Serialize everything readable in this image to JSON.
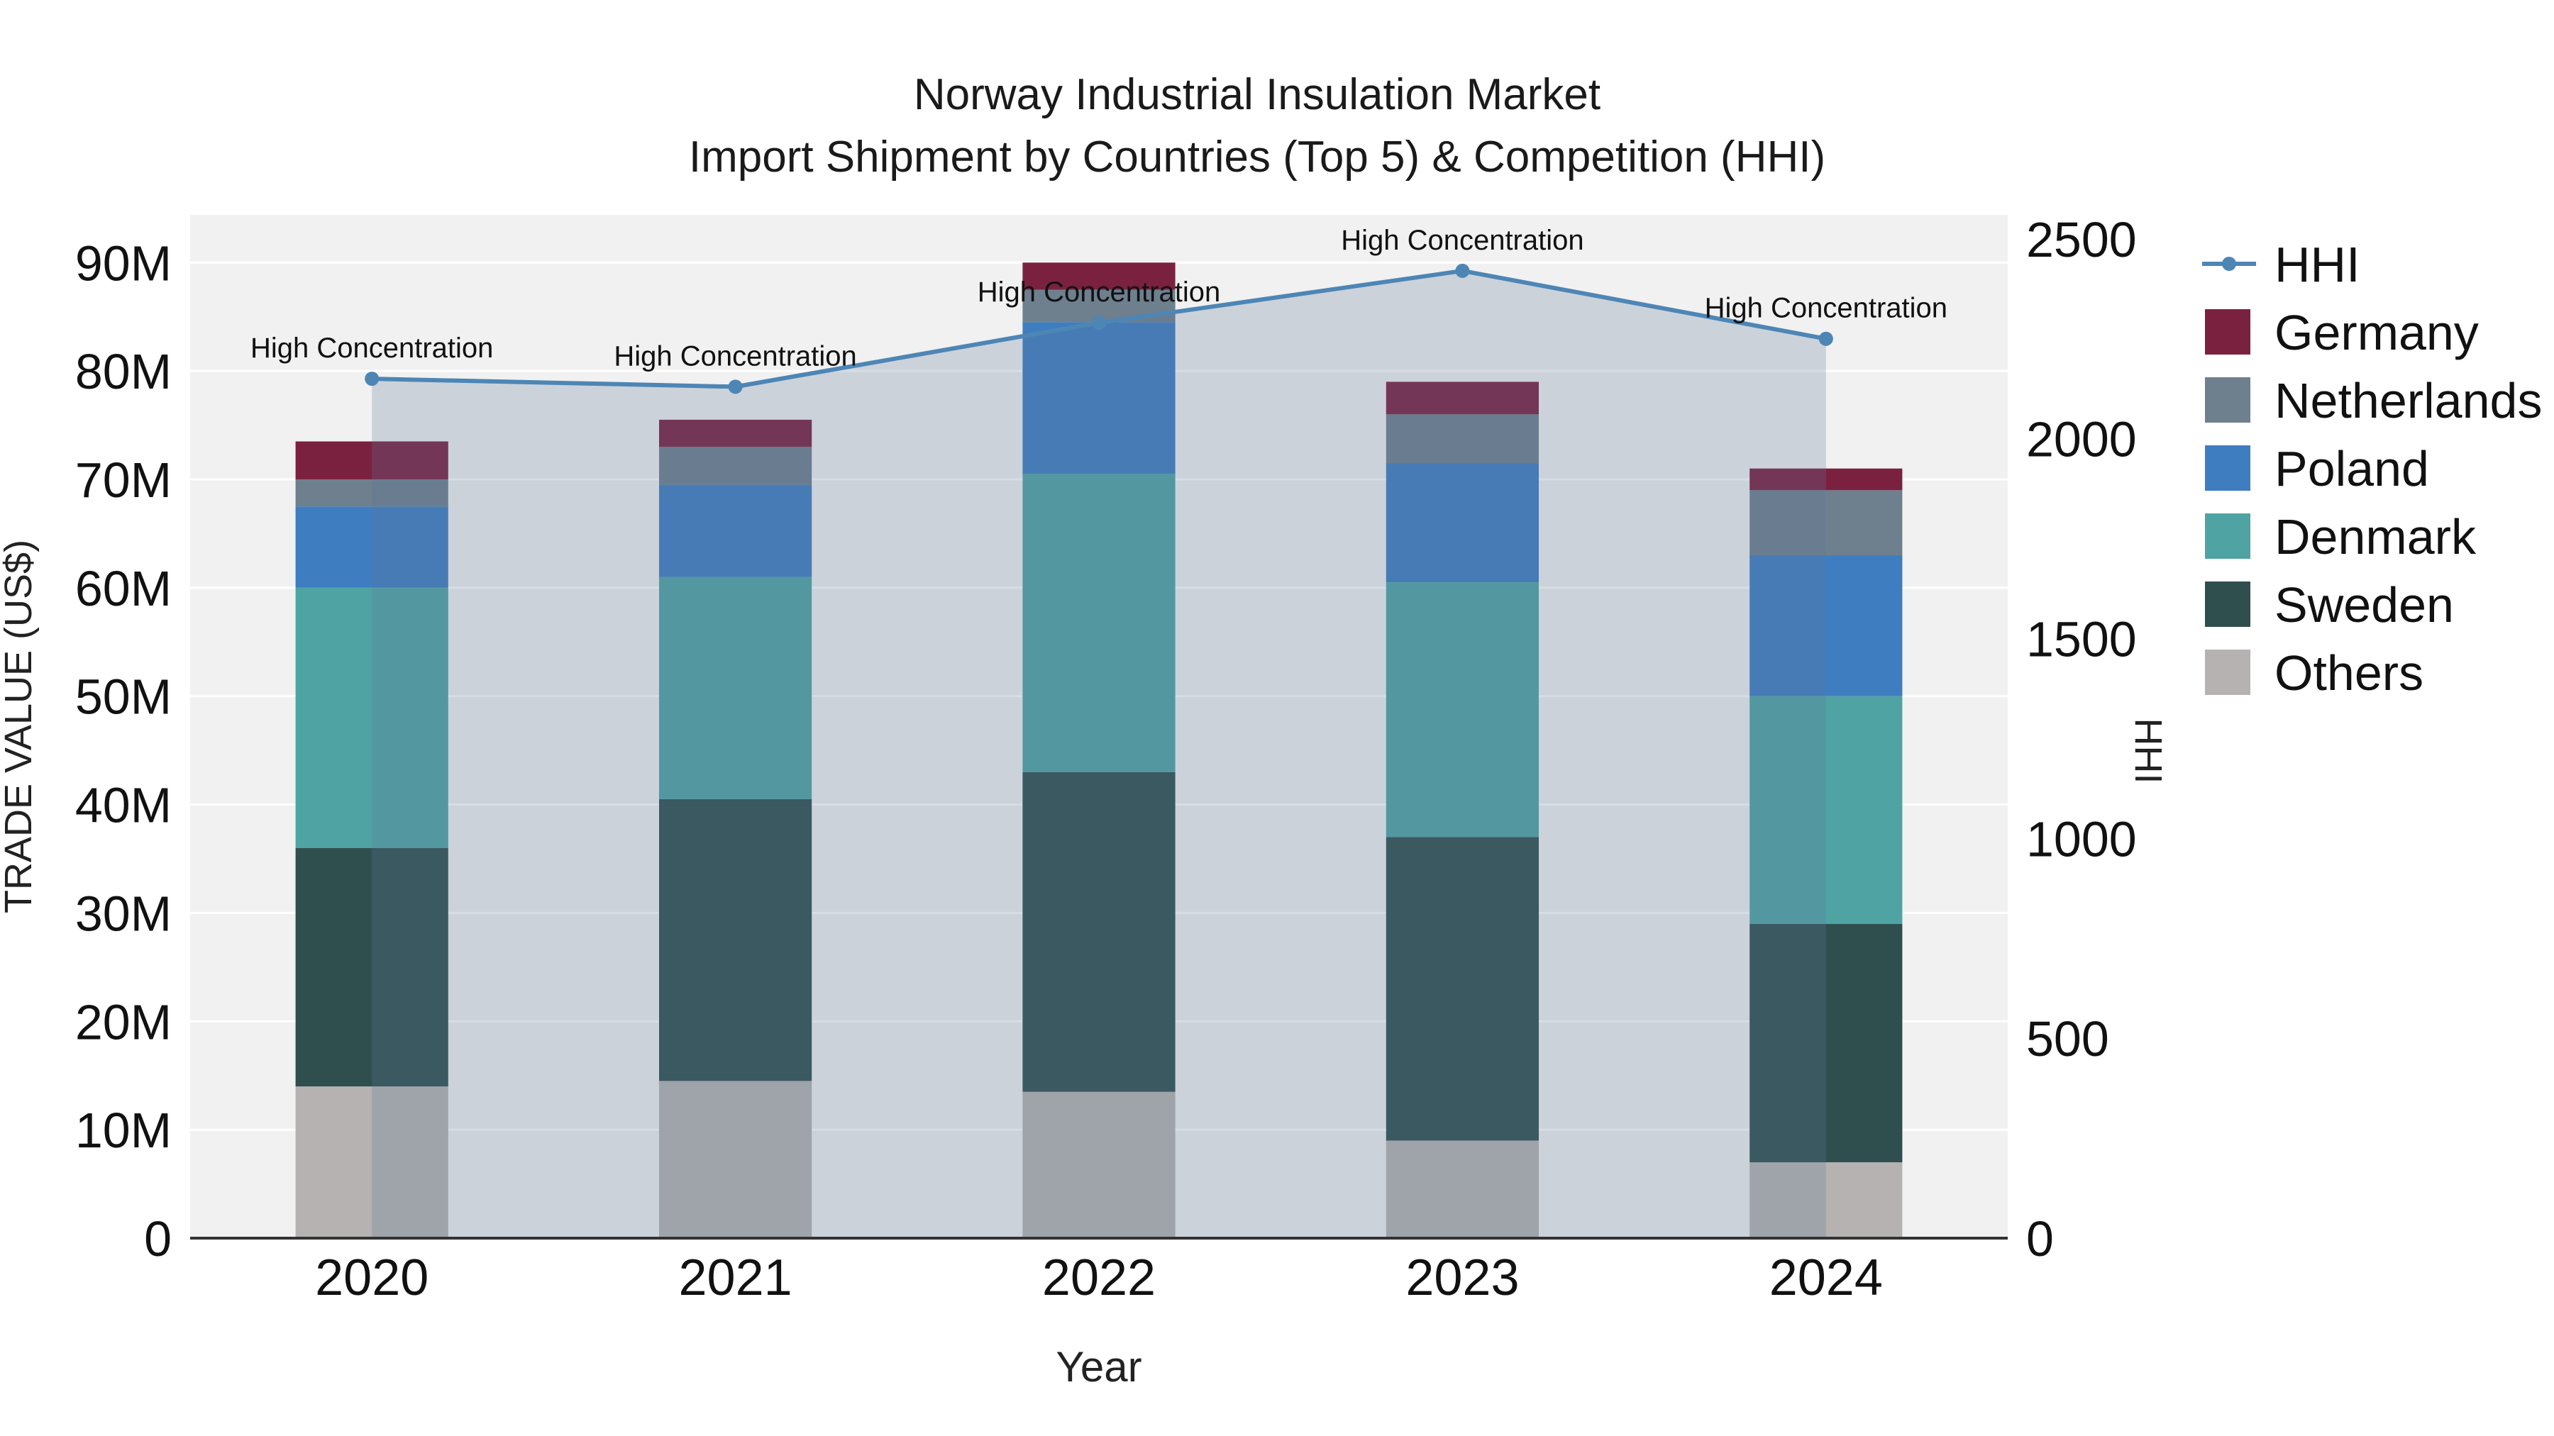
{
  "chart_data": {
    "type": "bar",
    "subtype": "stacked-bars-with-hhi-line-and-area",
    "title": "Norway Industrial Insulation Market",
    "subtitle": "Import Shipment by Countries (Top 5) & Competition (HHI)",
    "xlabel": "Year",
    "ylabel_left": "TRADE VALUE (US$)",
    "ylabel_right": "HHI",
    "value_unit": "million US$",
    "categories": [
      "2020",
      "2021",
      "2022",
      "2023",
      "2024"
    ],
    "stack_order_bottom_to_top": [
      "Others",
      "Sweden",
      "Denmark",
      "Poland",
      "Netherlands",
      "Germany"
    ],
    "series": [
      {
        "name": "Germany",
        "color": "#7b2140",
        "values": [
          3.5,
          2.5,
          2.5,
          3.0,
          2.0
        ]
      },
      {
        "name": "Netherlands",
        "color": "#6e7f8e",
        "values": [
          2.5,
          3.5,
          3.0,
          4.5,
          6.0
        ]
      },
      {
        "name": "Poland",
        "color": "#3e7dc0",
        "values": [
          7.5,
          8.5,
          14.0,
          11.0,
          13.0
        ]
      },
      {
        "name": "Denmark",
        "color": "#4fa3a3",
        "values": [
          24.0,
          20.5,
          27.5,
          23.5,
          21.0
        ]
      },
      {
        "name": "Sweden",
        "color": "#2f4f4f",
        "values": [
          22.0,
          26.0,
          29.5,
          28.0,
          22.0
        ]
      },
      {
        "name": "Others",
        "color": "#b5b2b1",
        "values": [
          14.0,
          14.5,
          13.5,
          9.0,
          7.0
        ]
      }
    ],
    "bar_totals": [
      73.5,
      75.5,
      90.0,
      79.0,
      71.0
    ],
    "hhi": {
      "name": "HHI",
      "color": "#4d86b5",
      "fill_color": "rgba(95,120,150,0.25)",
      "values": [
        2150,
        2130,
        2290,
        2420,
        2250
      ]
    },
    "annotations": [
      "High Concentration",
      "High Concentration",
      "High Concentration",
      "High Concentration",
      "High Concentration"
    ],
    "left_axis": {
      "ticks": [
        "0",
        "10M",
        "20M",
        "30M",
        "40M",
        "50M",
        "60M",
        "70M",
        "80M",
        "90M"
      ],
      "tick_values": [
        0,
        10,
        20,
        30,
        40,
        50,
        60,
        70,
        80,
        90
      ],
      "max": 94.4
    },
    "right_axis": {
      "ticks": [
        "0",
        "500",
        "1000",
        "1500",
        "2000",
        "2500"
      ],
      "tick_values": [
        0,
        500,
        1000,
        1500,
        2000,
        2500
      ],
      "max": 2560
    },
    "legend": [
      "HHI",
      "Germany",
      "Netherlands",
      "Poland",
      "Denmark",
      "Sweden",
      "Others"
    ],
    "legend_position": "right",
    "grid": "horizontal",
    "colors": {
      "plot_background": "#f1f1f1",
      "gridline": "#ffffff",
      "axis_line": "#333333",
      "text": "#111111"
    }
  }
}
